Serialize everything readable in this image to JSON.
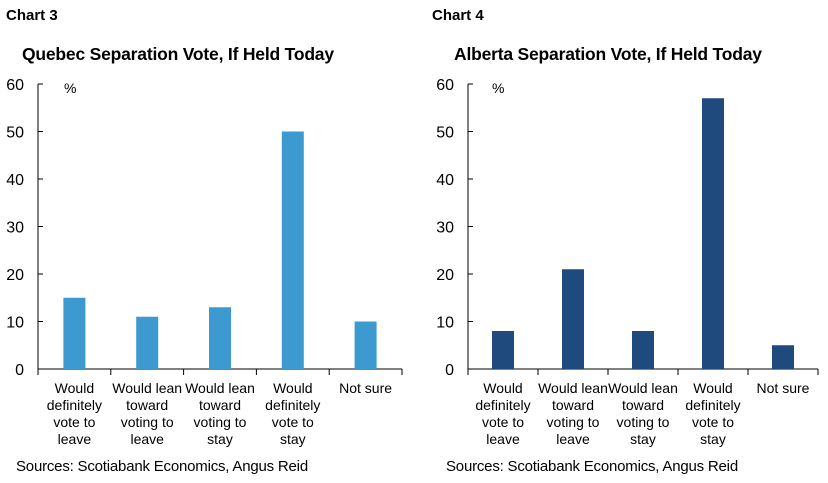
{
  "chart_data": [
    {
      "type": "bar",
      "label": "Chart 3",
      "title": "Quebec Separation Vote, If Held Today",
      "unit": "%",
      "categories": [
        [
          "Would",
          "definitely",
          "vote to",
          "leave"
        ],
        [
          "Would lean",
          "toward",
          "voting to",
          "leave"
        ],
        [
          "Would lean",
          "toward",
          "voting to",
          "stay"
        ],
        [
          "Would",
          "definitely",
          "vote to",
          "stay"
        ],
        [
          "Not sure"
        ]
      ],
      "values": [
        15,
        11,
        13,
        50,
        10
      ],
      "ylim": [
        0,
        60
      ],
      "yticks": [
        "0",
        "10",
        "20",
        "30",
        "40",
        "50",
        "60"
      ],
      "color": "#3d9ad1",
      "grid": false,
      "source": "Sources: Scotiabank Economics, Angus Reid"
    },
    {
      "type": "bar",
      "label": "Chart 4",
      "title": "Alberta Separation Vote, If Held Today",
      "unit": "%",
      "categories": [
        [
          "Would",
          "definitely",
          "vote to",
          "leave"
        ],
        [
          "Would lean",
          "toward",
          "voting to",
          "leave"
        ],
        [
          "Would lean",
          "toward",
          "voting to",
          "stay"
        ],
        [
          "Would",
          "definitely",
          "vote to",
          "stay"
        ],
        [
          "Not sure"
        ]
      ],
      "values": [
        8,
        21,
        8,
        57,
        5
      ],
      "ylim": [
        0,
        60
      ],
      "yticks": [
        "0",
        "10",
        "20",
        "30",
        "40",
        "50",
        "60"
      ],
      "color": "#1f4a7d",
      "grid": false,
      "source": "Sources: Scotiabank Economics, Angus Reid"
    }
  ]
}
